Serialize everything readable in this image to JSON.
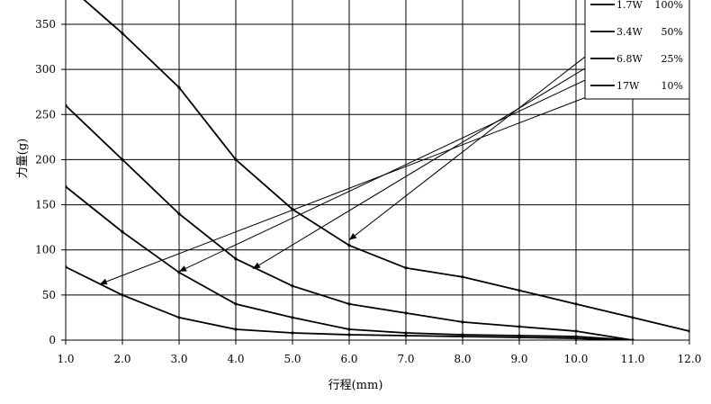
{
  "chart_data": {
    "type": "line",
    "title": "",
    "xlabel": "行程(mm)",
    "ylabel": "力量(g)",
    "xlim": [
      1.0,
      12.0
    ],
    "ylim": [
      0,
      350
    ],
    "x_ticks": [
      1.0,
      2.0,
      3.0,
      4.0,
      5.0,
      6.0,
      7.0,
      8.0,
      9.0,
      10.0,
      11.0,
      12.0
    ],
    "x_tick_labels": [
      "1.0",
      "2.0",
      "3.0",
      "4.0",
      "5.0",
      "6.0",
      "7.0",
      "8.0",
      "9.0",
      "10.0",
      "11.0",
      "12.0"
    ],
    "y_ticks": [
      0,
      50,
      100,
      150,
      200,
      250,
      300,
      350
    ],
    "y_tick_labels": [
      "0",
      "50",
      "100",
      "150",
      "200",
      "250",
      "300",
      "350"
    ],
    "grid": true,
    "legend_position": "top-right",
    "series": [
      {
        "name": "1.7W 100%",
        "x": [
          1.0,
          2.0,
          3.0,
          4.0,
          5.0,
          6.0,
          7.0,
          8.0,
          9.0,
          10.0,
          11.0,
          12.0
        ],
        "y": [
          395,
          340,
          280,
          200,
          145,
          105,
          80,
          70,
          55,
          40,
          25,
          10
        ],
        "arrow_from": [
          11.0,
          355
        ],
        "arrow_to": [
          6.0,
          111
        ]
      },
      {
        "name": "3.4W 50%",
        "x": [
          1.0,
          2.0,
          3.0,
          4.0,
          5.0,
          6.0,
          7.0,
          8.0,
          9.0,
          10.0,
          11.0
        ],
        "y": [
          260,
          200,
          140,
          90,
          60,
          40,
          30,
          20,
          15,
          10,
          0
        ],
        "arrow_from": [
          11.0,
          333
        ],
        "arrow_to": [
          4.3,
          79
        ]
      },
      {
        "name": "6.8W 25%",
        "x": [
          1.0,
          2.0,
          3.0,
          4.0,
          5.0,
          6.0,
          7.0,
          8.0,
          9.0,
          10.0,
          11.0
        ],
        "y": [
          170,
          120,
          75,
          40,
          25,
          12,
          8,
          6,
          5,
          4,
          0
        ],
        "arrow_from": [
          11.0,
          313
        ],
        "arrow_to": [
          3.0,
          76
        ]
      },
      {
        "name": "17W 10%",
        "x": [
          1.0,
          2.0,
          3.0,
          4.0,
          5.0,
          6.0,
          7.0,
          8.0,
          9.0,
          10.0,
          10.7
        ],
        "y": [
          81,
          50,
          25,
          12,
          8,
          6,
          5,
          4,
          3,
          2,
          0
        ],
        "arrow_from": [
          11.0,
          289
        ],
        "arrow_to": [
          1.6,
          62
        ]
      }
    ]
  }
}
